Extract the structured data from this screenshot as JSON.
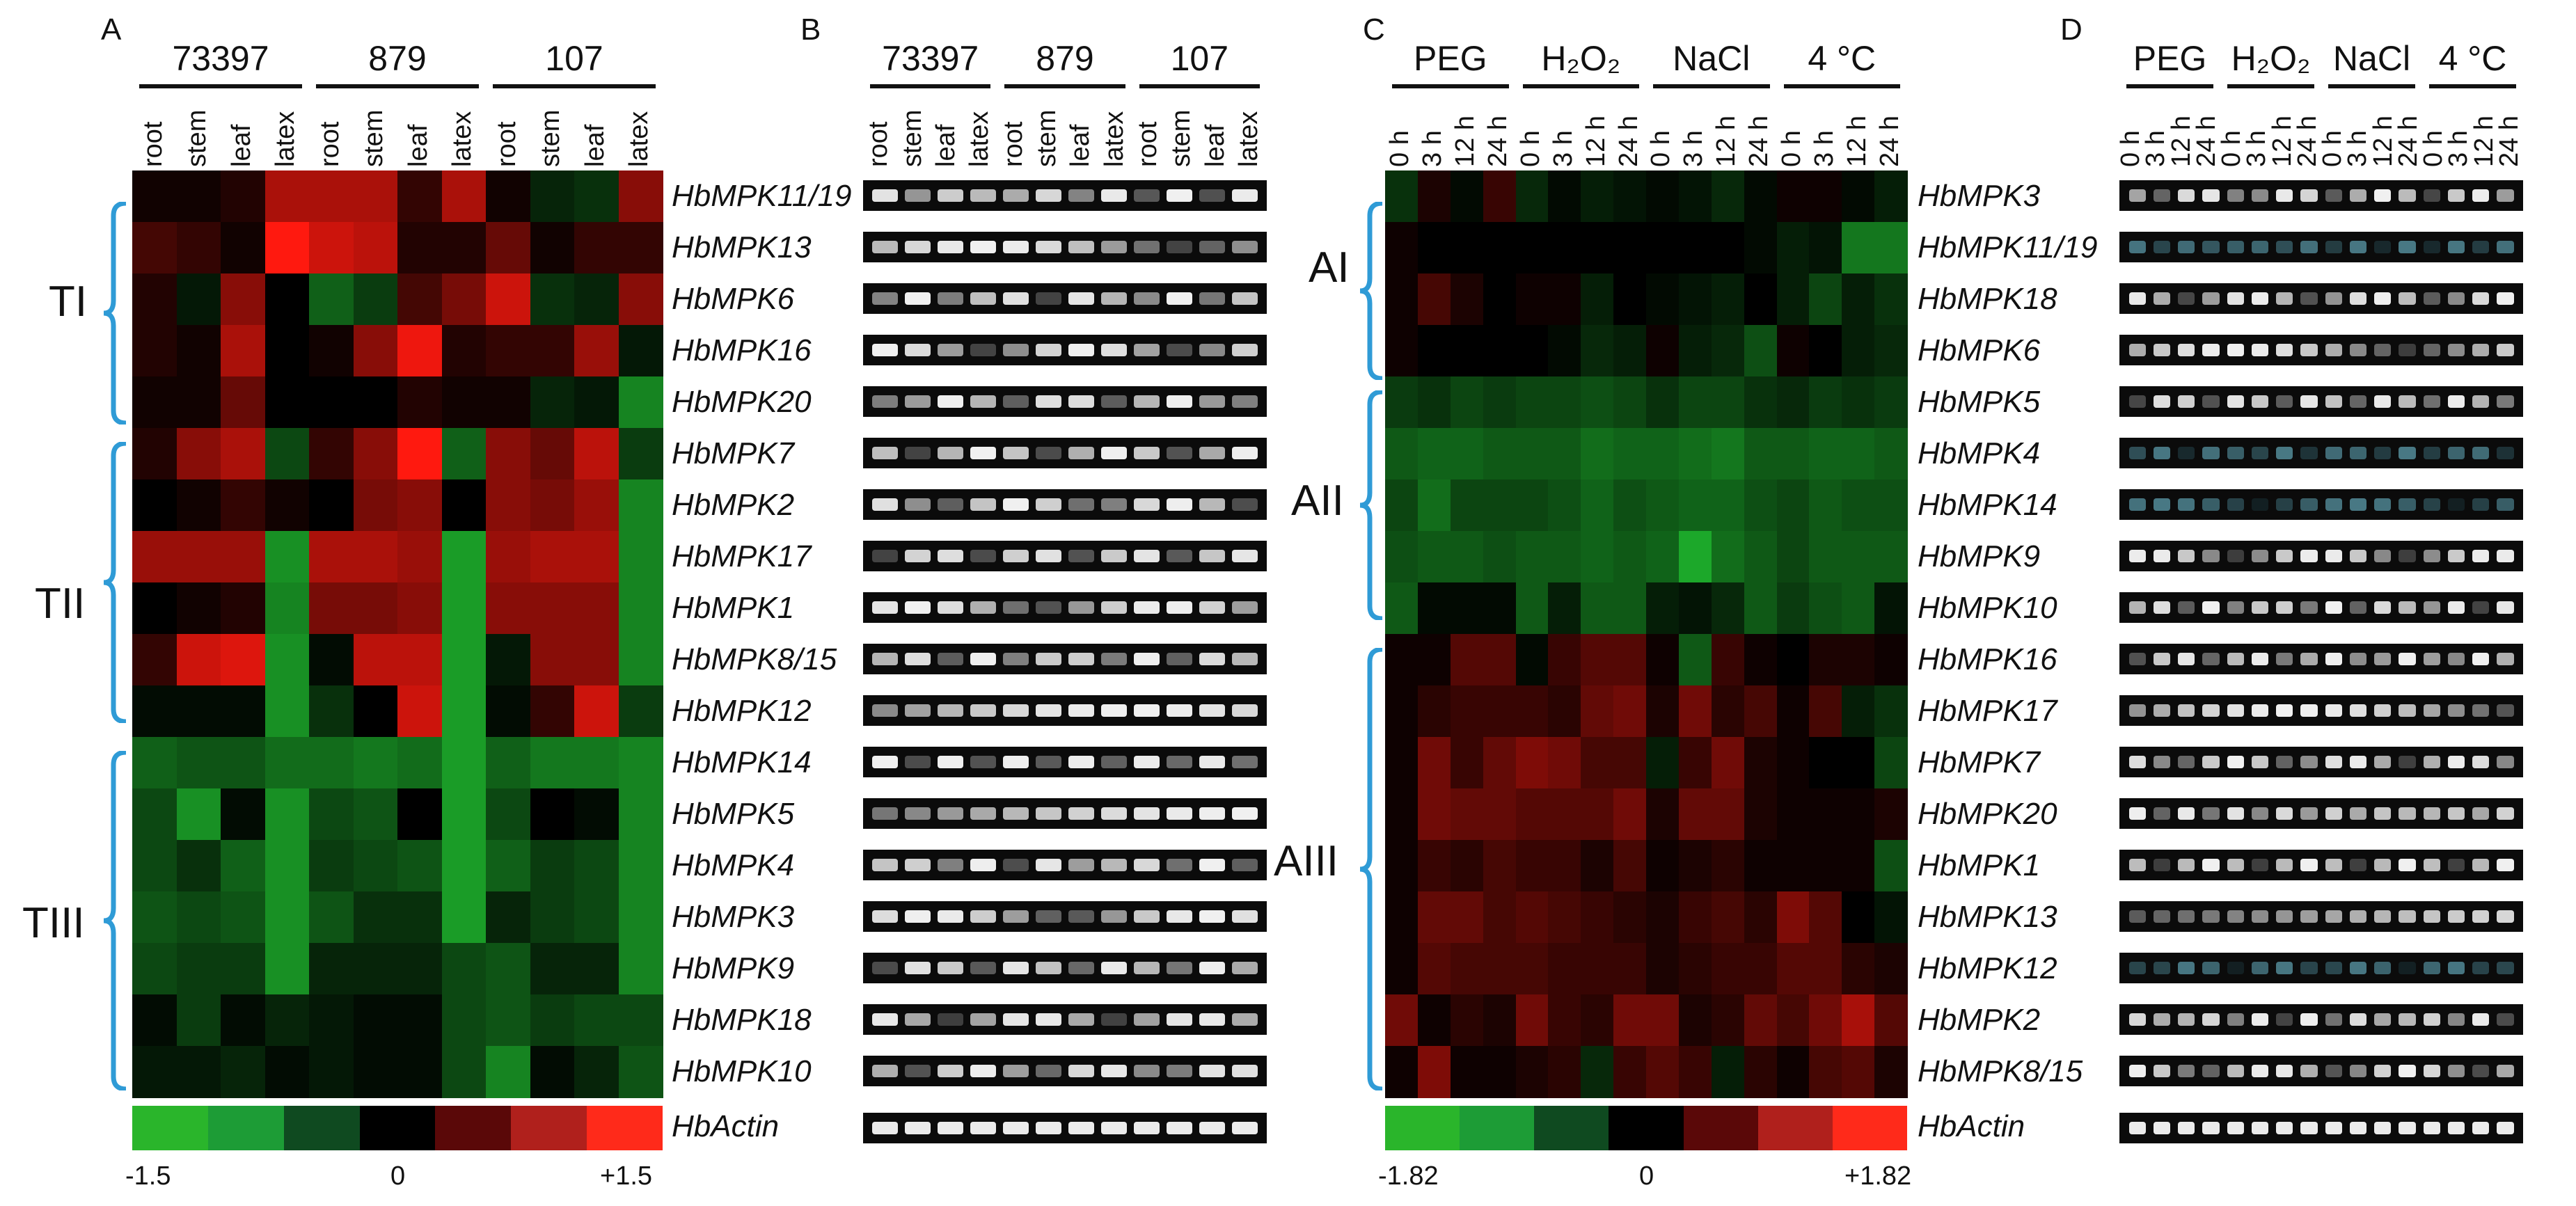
{
  "panels": {
    "A": {
      "label": "A"
    },
    "B": {
      "label": "B"
    },
    "C": {
      "label": "C"
    },
    "D": {
      "label": "D"
    }
  },
  "tissue_groups": [
    "73397",
    "879",
    "107"
  ],
  "tissues": [
    "root",
    "stem",
    "leaf",
    "latex"
  ],
  "stress_groups": [
    "PEG",
    "H2O2",
    "NaCl",
    "4 °C"
  ],
  "timepoints": [
    "0 h",
    "3 h",
    "12 h",
    "24 h"
  ],
  "genes_AB": [
    "HbMPK11/19",
    "HbMPK13",
    "HbMPK6",
    "HbMPK16",
    "HbMPK20",
    "HbMPK7",
    "HbMPK2",
    "HbMPK17",
    "HbMPK1",
    "HbMPK8/15",
    "HbMPK12",
    "HbMPK14",
    "HbMPK5",
    "HbMPK4",
    "HbMPK3",
    "HbMPK9",
    "HbMPK18",
    "HbMPK10"
  ],
  "genes_CD": [
    "HbMPK3",
    "HbMPK11/19",
    "HbMPK18",
    "HbMPK6",
    "HbMPK5",
    "HbMPK4",
    "HbMPK14",
    "HbMPK9",
    "HbMPK10",
    "HbMPK16",
    "HbMPK17",
    "HbMPK7",
    "HbMPK20",
    "HbMPK1",
    "HbMPK13",
    "HbMPK12",
    "HbMPK2",
    "HbMPK8/15"
  ],
  "reference_gene": "HbActin",
  "clusters_A": [
    "TI",
    "TII",
    "TIII"
  ],
  "clusters_C": [
    "AI",
    "AII",
    "AIII"
  ],
  "scale_A": {
    "min": "-1.5",
    "mid": "0",
    "max": "+1.5"
  },
  "scale_C": {
    "min": "-1.82",
    "mid": "0",
    "max": "+1.82"
  },
  "colors": {
    "low": "#22b32a",
    "mid": "#000000",
    "high": "#ff2a1a"
  },
  "chart_data": [
    {
      "type": "heatmap",
      "panel": "A",
      "rows": [
        "HbMPK11/19",
        "HbMPK13",
        "HbMPK6",
        "HbMPK16",
        "HbMPK20",
        "HbMPK7",
        "HbMPK2",
        "HbMPK17",
        "HbMPK1",
        "HbMPK8/15",
        "HbMPK12",
        "HbMPK14",
        "HbMPK5",
        "HbMPK4",
        "HbMPK3",
        "HbMPK9",
        "HbMPK18",
        "HbMPK10"
      ],
      "columns": [
        "73397 root",
        "73397 stem",
        "73397 leaf",
        "73397 latex",
        "879 root",
        "879 stem",
        "879 leaf",
        "879 latex",
        "107 root",
        "107 stem",
        "107 leaf",
        "107 latex"
      ],
      "range": [
        -1.5,
        1.5
      ],
      "values": [
        [
          0.1,
          0.1,
          0.2,
          1.0,
          1.0,
          1.0,
          0.3,
          1.0,
          0.1,
          -0.3,
          -0.4,
          0.8
        ],
        [
          0.4,
          0.3,
          0.1,
          1.5,
          1.2,
          1.1,
          0.2,
          0.2,
          0.6,
          0.1,
          0.3,
          0.3
        ],
        [
          0.2,
          -0.2,
          0.8,
          0.0,
          -0.8,
          -0.5,
          0.4,
          0.7,
          1.2,
          -0.4,
          -0.3,
          0.8
        ],
        [
          0.2,
          0.1,
          1.0,
          0.0,
          0.1,
          0.8,
          1.4,
          0.2,
          0.3,
          0.3,
          0.9,
          -0.2
        ],
        [
          0.1,
          0.1,
          0.6,
          0.0,
          0.0,
          0.0,
          0.2,
          0.1,
          0.1,
          -0.3,
          -0.2,
          -1.1
        ],
        [
          0.2,
          0.8,
          1.0,
          -0.6,
          0.3,
          0.8,
          1.5,
          -0.8,
          0.8,
          0.6,
          1.1,
          -0.5
        ],
        [
          0.0,
          0.1,
          0.3,
          0.1,
          0.0,
          0.7,
          0.8,
          0.0,
          0.8,
          0.7,
          0.9,
          -1.1
        ],
        [
          0.9,
          0.9,
          0.9,
          -1.2,
          1.0,
          1.0,
          0.9,
          -1.3,
          0.9,
          1.0,
          1.0,
          -1.1
        ],
        [
          0.0,
          0.1,
          0.2,
          -1.1,
          0.7,
          0.7,
          0.8,
          -1.3,
          0.8,
          0.8,
          0.8,
          -1.1
        ],
        [
          0.3,
          1.2,
          1.3,
          -1.2,
          -0.1,
          1.1,
          1.1,
          -1.3,
          -0.2,
          0.8,
          0.8,
          -1.1
        ],
        [
          -0.1,
          -0.1,
          -0.1,
          -1.2,
          -0.4,
          0.0,
          1.2,
          -1.3,
          -0.1,
          0.3,
          1.2,
          -0.5
        ],
        [
          -0.8,
          -0.7,
          -0.7,
          -0.9,
          -0.9,
          -1.0,
          -0.9,
          -1.3,
          -0.8,
          -1.0,
          -1.0,
          -1.1
        ],
        [
          -0.6,
          -1.2,
          -0.1,
          -1.2,
          -0.6,
          -0.7,
          0.0,
          -1.3,
          -0.6,
          0.0,
          -0.1,
          -1.1
        ],
        [
          -0.6,
          -0.4,
          -0.8,
          -1.2,
          -0.5,
          -0.6,
          -0.7,
          -1.3,
          -0.8,
          -0.5,
          -0.6,
          -1.1
        ],
        [
          -0.7,
          -0.6,
          -0.7,
          -1.2,
          -0.7,
          -0.4,
          -0.4,
          -1.3,
          -0.3,
          -0.5,
          -0.6,
          -1.1
        ],
        [
          -0.6,
          -0.5,
          -0.5,
          -1.2,
          -0.3,
          -0.3,
          -0.3,
          -0.6,
          -0.7,
          -0.3,
          -0.3,
          -1.1
        ],
        [
          -0.1,
          -0.5,
          -0.1,
          -0.3,
          -0.2,
          -0.1,
          -0.1,
          -0.6,
          -0.7,
          -0.5,
          -0.6,
          -0.6
        ],
        [
          -0.2,
          -0.2,
          -0.3,
          -0.1,
          -0.2,
          -0.1,
          -0.1,
          -0.6,
          -1.1,
          -0.1,
          -0.3,
          -0.7
        ]
      ]
    },
    {
      "type": "heatmap",
      "panel": "C",
      "rows": [
        "HbMPK3",
        "HbMPK11/19",
        "HbMPK18",
        "HbMPK6",
        "HbMPK5",
        "HbMPK4",
        "HbMPK14",
        "HbMPK9",
        "HbMPK10",
        "HbMPK16",
        "HbMPK17",
        "HbMPK7",
        "HbMPK20",
        "HbMPK1",
        "HbMPK13",
        "HbMPK12",
        "HbMPK2",
        "HbMPK8/15"
      ],
      "columns": [
        "PEG 0 h",
        "PEG 3 h",
        "PEG 12 h",
        "PEG 24 h",
        "H2O2 0 h",
        "H2O2 3 h",
        "H2O2 12 h",
        "H2O2 24 h",
        "NaCl 0 h",
        "NaCl 3 h",
        "NaCl 12 h",
        "NaCl 24 h",
        "4 °C 0 h",
        "4 °C 3 h",
        "4 °C 12 h",
        "4 °C 24 h"
      ],
      "range": [
        -1.82,
        1.82
      ],
      "values": [
        [
          -0.5,
          0.2,
          -0.1,
          0.4,
          -0.4,
          -0.1,
          -0.3,
          -0.2,
          -0.1,
          -0.2,
          -0.4,
          -0.1,
          0.1,
          0.1,
          -0.1,
          -0.3
        ],
        [
          0.1,
          0.0,
          0.0,
          0.0,
          0.0,
          0.0,
          0.0,
          0.0,
          0.0,
          0.0,
          0.0,
          -0.1,
          -0.3,
          -0.2,
          -1.2,
          -1.2
        ],
        [
          0.1,
          0.5,
          0.2,
          0.0,
          0.1,
          0.1,
          -0.3,
          0.0,
          -0.1,
          -0.2,
          -0.3,
          0.0,
          -0.3,
          -0.7,
          -0.3,
          -0.5
        ],
        [
          0.1,
          0.0,
          0.0,
          0.0,
          0.0,
          -0.1,
          -0.4,
          -0.3,
          0.1,
          -0.3,
          -0.4,
          -0.8,
          0.1,
          0.0,
          -0.3,
          -0.4
        ],
        [
          -0.6,
          -0.5,
          -0.7,
          -0.6,
          -0.7,
          -0.7,
          -0.8,
          -0.7,
          -0.5,
          -0.7,
          -0.7,
          -0.5,
          -0.4,
          -0.6,
          -0.5,
          -0.6
        ],
        [
          -0.9,
          -1.0,
          -1.0,
          -0.9,
          -0.9,
          -0.9,
          -1.1,
          -1.0,
          -1.0,
          -1.1,
          -1.2,
          -0.9,
          -0.9,
          -1.0,
          -1.0,
          -0.9
        ],
        [
          -0.7,
          -1.1,
          -0.7,
          -0.7,
          -0.7,
          -0.8,
          -1.0,
          -0.8,
          -0.9,
          -1.0,
          -1.0,
          -0.8,
          -0.7,
          -0.9,
          -0.8,
          -0.8
        ],
        [
          -0.8,
          -0.9,
          -0.9,
          -0.8,
          -0.9,
          -0.9,
          -1.0,
          -0.9,
          -1.0,
          -1.7,
          -1.1,
          -0.9,
          -0.7,
          -0.9,
          -0.9,
          -0.9
        ],
        [
          -0.9,
          -0.1,
          -0.1,
          -0.1,
          -0.9,
          -0.3,
          -0.9,
          -0.9,
          -0.3,
          -0.2,
          -0.4,
          -0.9,
          -0.6,
          -0.8,
          -0.9,
          -0.2
        ],
        [
          0.1,
          0.1,
          0.6,
          0.6,
          -0.1,
          0.4,
          0.6,
          0.6,
          0.1,
          -0.9,
          0.4,
          0.1,
          0.0,
          0.2,
          0.2,
          0.1
        ],
        [
          0.1,
          0.3,
          0.4,
          0.4,
          0.4,
          0.3,
          0.7,
          0.8,
          0.2,
          0.8,
          0.3,
          0.5,
          0.1,
          0.5,
          -0.3,
          -0.5
        ],
        [
          0.1,
          0.8,
          0.4,
          0.7,
          0.9,
          0.8,
          0.5,
          0.5,
          -0.3,
          0.4,
          0.8,
          0.2,
          0.1,
          0.0,
          0.0,
          -0.7
        ],
        [
          0.1,
          0.8,
          0.7,
          0.7,
          0.6,
          0.6,
          0.6,
          0.8,
          0.2,
          0.7,
          0.7,
          0.2,
          0.1,
          0.1,
          0.1,
          0.2
        ],
        [
          0.1,
          0.4,
          0.3,
          0.5,
          0.4,
          0.4,
          0.2,
          0.5,
          0.1,
          0.2,
          0.3,
          0.1,
          0.1,
          0.1,
          0.1,
          -0.8
        ],
        [
          0.1,
          0.7,
          0.7,
          0.5,
          0.6,
          0.5,
          0.4,
          0.3,
          0.2,
          0.4,
          0.5,
          0.3,
          0.9,
          0.6,
          0.0,
          -0.2
        ],
        [
          0.1,
          0.6,
          0.5,
          0.5,
          0.5,
          0.4,
          0.4,
          0.4,
          0.2,
          0.3,
          0.4,
          0.4,
          0.6,
          0.6,
          0.3,
          0.2
        ],
        [
          0.8,
          0.1,
          0.3,
          0.2,
          0.8,
          0.4,
          0.3,
          0.8,
          0.8,
          0.2,
          0.3,
          0.7,
          0.5,
          0.8,
          1.2,
          0.6
        ],
        [
          0.1,
          0.9,
          0.1,
          0.1,
          0.2,
          0.3,
          -0.4,
          0.4,
          0.6,
          0.4,
          -0.3,
          0.3,
          0.1,
          0.5,
          0.6,
          0.2
        ]
      ]
    }
  ]
}
